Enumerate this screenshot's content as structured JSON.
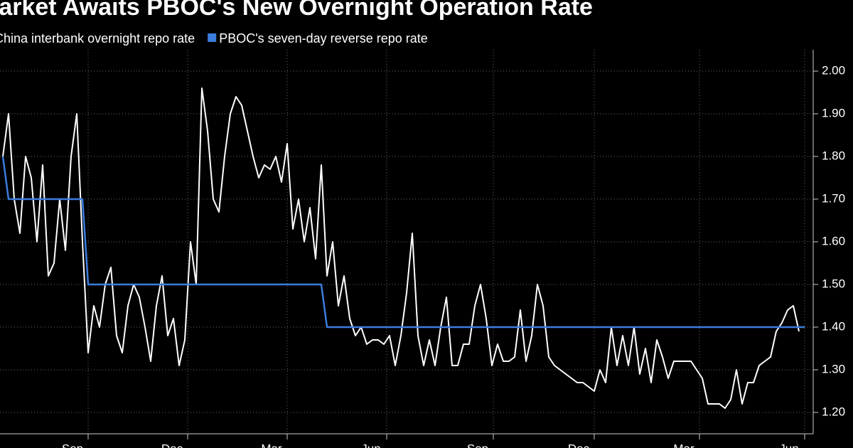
{
  "chart_data": {
    "type": "line",
    "title": "Market Awaits PBOC's New Overnight Operation Rate",
    "xlim": [
      -0.5,
      142.5
    ],
    "xticks": [
      {
        "value": 15,
        "label": "Sep"
      },
      {
        "value": 32.5,
        "label": "Dec"
      },
      {
        "value": 50,
        "label": "Mar"
      },
      {
        "value": 67.5,
        "label": "Jun"
      },
      {
        "value": 86.25,
        "label": "Sep"
      },
      {
        "value": 104,
        "label": "Dec"
      },
      {
        "value": 122.5,
        "label": "Mar"
      },
      {
        "value": 141,
        "label": "Jun"
      }
    ],
    "ylim": [
      1.15,
      2.04
    ],
    "yticks": [
      {
        "value": 1.2,
        "label": "1.20"
      },
      {
        "value": 1.3,
        "label": "1.30"
      },
      {
        "value": 1.4,
        "label": "1.40"
      },
      {
        "value": 1.5,
        "label": "1.50"
      },
      {
        "value": 1.6,
        "label": "1.60"
      },
      {
        "value": 1.7,
        "label": "1.70"
      },
      {
        "value": 1.8,
        "label": "1.80"
      },
      {
        "value": 1.9,
        "label": "1.90"
      },
      {
        "value": 2.0,
        "label": "2.00"
      }
    ],
    "grid": true,
    "series": [
      {
        "name": "China interbank overnight repo rate",
        "color": "#ffffff",
        "values": [
          1.8,
          1.9,
          1.7,
          1.62,
          1.8,
          1.75,
          1.6,
          1.78,
          1.52,
          1.55,
          1.7,
          1.58,
          1.8,
          1.9,
          1.6,
          1.34,
          1.45,
          1.4,
          1.5,
          1.54,
          1.38,
          1.34,
          1.45,
          1.5,
          1.47,
          1.4,
          1.32,
          1.45,
          1.52,
          1.38,
          1.42,
          1.31,
          1.37,
          1.6,
          1.5,
          1.96,
          1.86,
          1.7,
          1.67,
          1.8,
          1.9,
          1.94,
          1.92,
          1.86,
          1.8,
          1.75,
          1.78,
          1.77,
          1.8,
          1.74,
          1.83,
          1.63,
          1.7,
          1.6,
          1.68,
          1.56,
          1.78,
          1.52,
          1.6,
          1.45,
          1.52,
          1.42,
          1.38,
          1.4,
          1.36,
          1.37,
          1.37,
          1.36,
          1.38,
          1.31,
          1.38,
          1.48,
          1.62,
          1.38,
          1.31,
          1.37,
          1.31,
          1.4,
          1.47,
          1.31,
          1.31,
          1.36,
          1.36,
          1.45,
          1.5,
          1.42,
          1.31,
          1.36,
          1.32,
          1.32,
          1.33,
          1.44,
          1.32,
          1.38,
          1.5,
          1.45,
          1.33,
          1.31,
          1.3,
          1.29,
          1.28,
          1.27,
          1.27,
          1.26,
          1.25,
          1.3,
          1.27,
          1.4,
          1.31,
          1.38,
          1.31,
          1.4,
          1.29,
          1.35,
          1.27,
          1.37,
          1.33,
          1.28,
          1.32,
          1.32,
          1.32,
          1.32,
          1.3,
          1.28,
          1.22,
          1.22,
          1.22,
          1.21,
          1.23,
          1.3,
          1.22,
          1.27,
          1.27,
          1.31,
          1.32,
          1.33,
          1.39,
          1.41,
          1.44,
          1.45,
          1.39
        ]
      },
      {
        "name": "PBOC's seven-day reverse repo rate",
        "color": "#3b7ddd",
        "values": [
          1.8,
          1.7,
          1.7,
          1.7,
          1.7,
          1.7,
          1.7,
          1.7,
          1.7,
          1.7,
          1.7,
          1.7,
          1.7,
          1.7,
          1.7,
          1.5,
          1.5,
          1.5,
          1.5,
          1.5,
          1.5,
          1.5,
          1.5,
          1.5,
          1.5,
          1.5,
          1.5,
          1.5,
          1.5,
          1.5,
          1.5,
          1.5,
          1.5,
          1.5,
          1.5,
          1.5,
          1.5,
          1.5,
          1.5,
          1.5,
          1.5,
          1.5,
          1.5,
          1.5,
          1.5,
          1.5,
          1.5,
          1.5,
          1.5,
          1.5,
          1.5,
          1.5,
          1.5,
          1.5,
          1.5,
          1.5,
          1.5,
          1.4,
          1.4,
          1.4,
          1.4,
          1.4,
          1.4,
          1.4,
          1.4,
          1.4,
          1.4,
          1.4,
          1.4,
          1.4,
          1.4,
          1.4,
          1.4,
          1.4,
          1.4,
          1.4,
          1.4,
          1.4,
          1.4,
          1.4,
          1.4,
          1.4,
          1.4,
          1.4,
          1.4,
          1.4,
          1.4,
          1.4,
          1.4,
          1.4,
          1.4,
          1.4,
          1.4,
          1.4,
          1.4,
          1.4,
          1.4,
          1.4,
          1.4,
          1.4,
          1.4,
          1.4,
          1.4,
          1.4,
          1.4,
          1.4,
          1.4,
          1.4,
          1.4,
          1.4,
          1.4,
          1.4,
          1.4,
          1.4,
          1.4,
          1.4,
          1.4,
          1.4,
          1.4,
          1.4,
          1.4,
          1.4,
          1.4,
          1.4,
          1.4,
          1.4,
          1.4,
          1.4,
          1.4,
          1.4,
          1.4,
          1.4,
          1.4,
          1.4,
          1.4,
          1.4,
          1.4,
          1.4,
          1.4,
          1.4,
          1.4,
          1.4
        ]
      }
    ]
  }
}
